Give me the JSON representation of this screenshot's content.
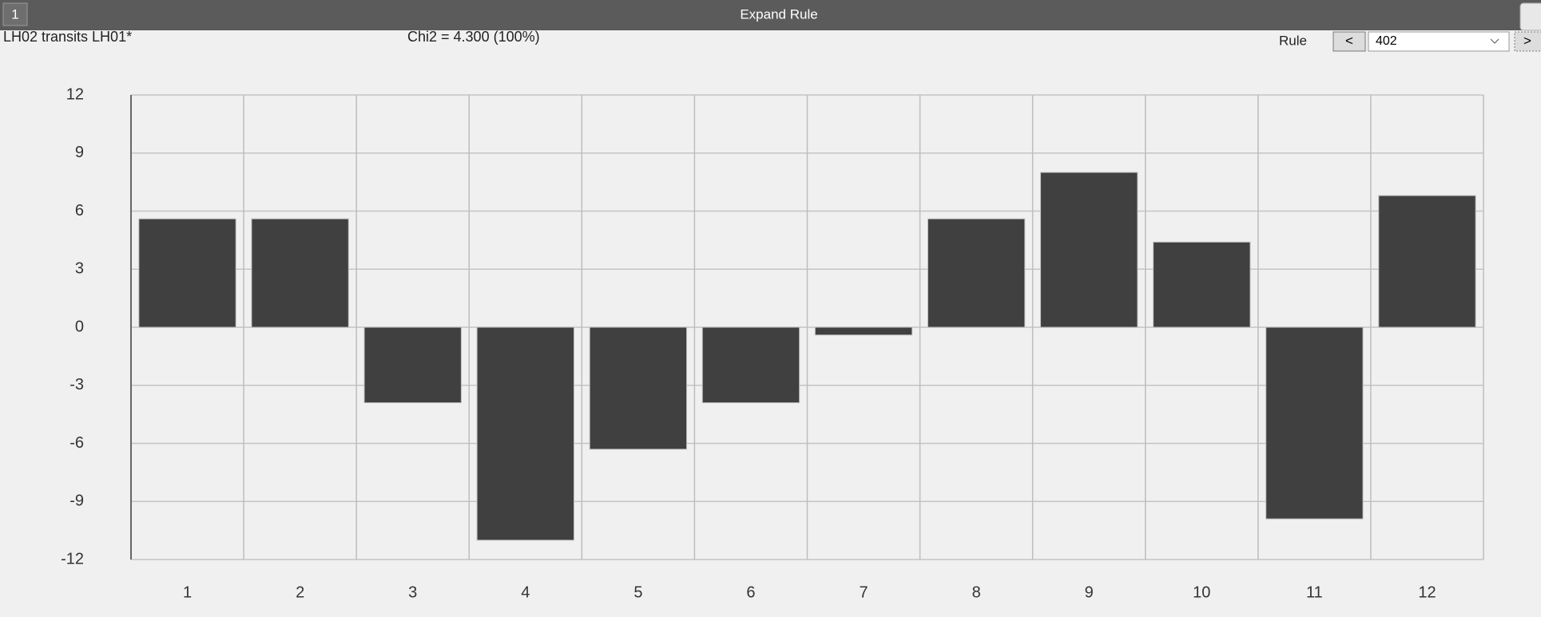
{
  "window": {
    "tab": "1",
    "title": "Expand Rule"
  },
  "header": {
    "rule_name": "LH02 transits LH01*",
    "chi2": "Chi2 = 4.300 (100%)",
    "rule_label": "Rule",
    "prev": "<",
    "rule_value": "402",
    "next": ">"
  },
  "chart_data": {
    "type": "bar",
    "categories": [
      "1",
      "2",
      "3",
      "4",
      "5",
      "6",
      "7",
      "8",
      "9",
      "10",
      "11",
      "12"
    ],
    "values": [
      5.6,
      5.6,
      -3.9,
      -11.0,
      -6.3,
      -3.9,
      -0.4,
      5.6,
      8.0,
      4.4,
      -9.9,
      6.8
    ],
    "color": "#404040",
    "ylim": [
      -12,
      12
    ],
    "yticks": [
      -12,
      -9,
      -6,
      -3,
      0,
      3,
      6,
      9,
      12
    ],
    "grid": true
  }
}
